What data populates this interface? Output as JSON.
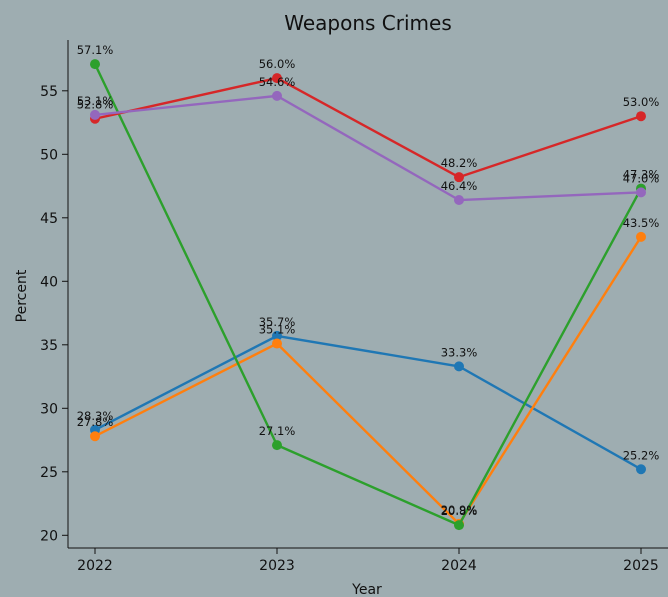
{
  "chart_data": {
    "type": "line",
    "title": "Weapons Crimes",
    "xlabel": "Year",
    "ylabel": "Percent",
    "x": [
      "2022",
      "2023",
      "2024",
      "2025"
    ],
    "ylim": [
      19,
      59
    ],
    "yticks": [
      20,
      25,
      30,
      35,
      40,
      45,
      50,
      55
    ],
    "grid": false,
    "legend": "none",
    "series": [
      {
        "color": "#1f77b4",
        "values": [
          28.3,
          35.7,
          33.3,
          25.2
        ],
        "labels": [
          "28.3%",
          "35.7%",
          "33.3%",
          "25.2%"
        ]
      },
      {
        "color": "#ff7f0e",
        "values": [
          27.8,
          35.1,
          20.9,
          43.5
        ],
        "labels": [
          "27.8%",
          "35.1%",
          "20.9%",
          "43.5%"
        ]
      },
      {
        "color": "#2ca02c",
        "values": [
          57.1,
          27.1,
          20.8,
          47.3
        ],
        "labels": [
          "57.1%",
          "27.1%",
          "20.8%",
          "47.3%"
        ]
      },
      {
        "color": "#d62728",
        "values": [
          52.8,
          56.0,
          48.2,
          53.0
        ],
        "labels": [
          "52.8%",
          "56.0%",
          "48.2%",
          "53.0%"
        ]
      },
      {
        "color": "#9467bd",
        "values": [
          53.1,
          54.6,
          46.4,
          47.0
        ],
        "labels": [
          "53.1%",
          "54.6%",
          "46.4%",
          "47.0%"
        ]
      }
    ]
  }
}
